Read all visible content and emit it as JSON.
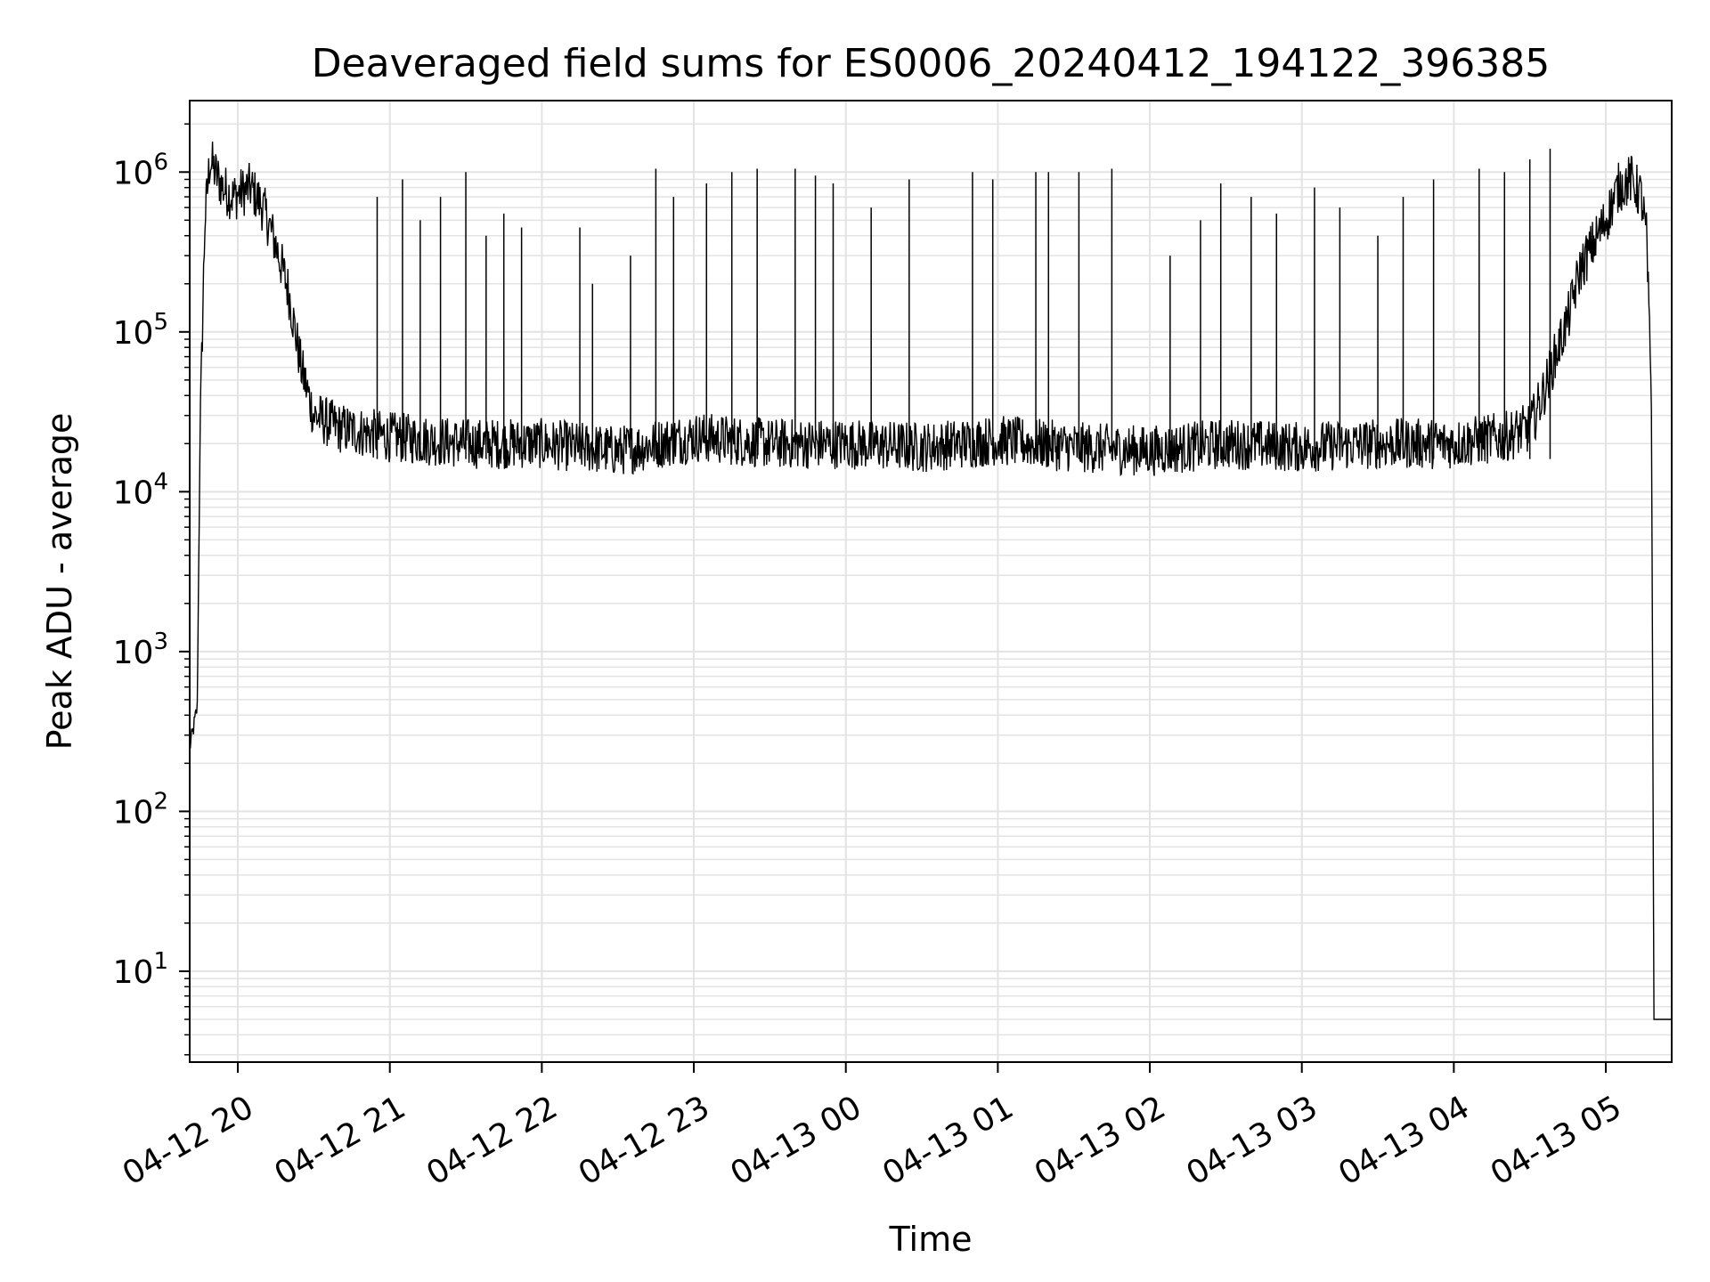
{
  "chart_data": {
    "type": "line",
    "title": "Deaveraged field sums for ES0006_20240412_194122_396385",
    "xlabel": "Time",
    "ylabel": "Peak ADU - average",
    "yscale": "log",
    "ylim": [
      2.7,
      2800000
    ],
    "xlim": [
      "2024-04-12 19:41",
      "2024-04-13 05:26"
    ],
    "grid": true,
    "x_ticks": [
      "04-12 20",
      "04-12 21",
      "04-12 22",
      "04-12 23",
      "04-13 00",
      "04-13 01",
      "04-13 02",
      "04-13 03",
      "04-13 04",
      "04-13 05"
    ],
    "y_ticks": [
      {
        "base": "10",
        "exp": "1",
        "value": 10
      },
      {
        "base": "10",
        "exp": "2",
        "value": 100
      },
      {
        "base": "10",
        "exp": "3",
        "value": 1000
      },
      {
        "base": "10",
        "exp": "4",
        "value": 10000
      },
      {
        "base": "10",
        "exp": "5",
        "value": 100000
      },
      {
        "base": "10",
        "exp": "6",
        "value": 1000000
      }
    ],
    "series": [
      {
        "color": "#000000",
        "x": [
          "2024-04-12 19:41",
          "2024-04-12 19:42",
          "2024-04-12 19:44",
          "2024-04-12 19:45",
          "2024-04-12 19:47",
          "2024-04-12 19:49",
          "2024-04-12 19:51",
          "2024-04-12 19:54",
          "2024-04-12 19:58",
          "2024-04-12 20:05",
          "2024-04-12 20:10",
          "2024-04-12 20:15",
          "2024-04-12 20:20",
          "2024-04-12 20:25",
          "2024-04-12 20:30",
          "2024-04-12 20:40",
          "2024-04-12 21:00",
          "2024-04-12 21:30",
          "2024-04-12 22:00",
          "2024-04-12 22:30",
          "2024-04-12 23:00",
          "2024-04-12 23:30",
          "2024-04-13 00:00",
          "2024-04-13 00:30",
          "2024-04-13 01:00",
          "2024-04-13 01:30",
          "2024-04-13 02:00",
          "2024-04-13 02:30",
          "2024-04-13 03:00",
          "2024-04-13 03:30",
          "2024-04-13 04:00",
          "2024-04-13 04:20",
          "2024-04-13 04:30",
          "2024-04-13 04:35",
          "2024-04-13 04:40",
          "2024-04-13 04:45",
          "2024-04-13 04:50",
          "2024-04-13 05:00",
          "2024-04-13 05:05",
          "2024-04-13 05:10",
          "2024-04-13 05:14",
          "2024-04-13 05:16",
          "2024-04-13 05:18",
          "2024-04-13 05:19",
          "2024-04-13 05:26"
        ],
        "y": [
          250,
          300,
          450,
          20000,
          500000,
          1200000,
          1000000,
          800000,
          700000,
          800000,
          600000,
          350000,
          180000,
          60000,
          30000,
          25000,
          22000,
          20000,
          20000,
          18000,
          22000,
          20000,
          20000,
          19000,
          21000,
          19000,
          18000,
          20000,
          19000,
          20000,
          20000,
          22000,
          25000,
          40000,
          70000,
          120000,
          250000,
          500000,
          800000,
          900000,
          700000,
          400000,
          40000,
          5,
          5
        ]
      }
    ],
    "spikes": [
      {
        "x": "2024-04-12 20:55",
        "y": 700000
      },
      {
        "x": "2024-04-12 21:05",
        "y": 900000
      },
      {
        "x": "2024-04-12 21:12",
        "y": 500000
      },
      {
        "x": "2024-04-12 21:20",
        "y": 700000
      },
      {
        "x": "2024-04-12 21:30",
        "y": 1000000
      },
      {
        "x": "2024-04-12 21:38",
        "y": 400000
      },
      {
        "x": "2024-04-12 21:45",
        "y": 550000
      },
      {
        "x": "2024-04-12 21:52",
        "y": 450000
      },
      {
        "x": "2024-04-12 22:15",
        "y": 450000
      },
      {
        "x": "2024-04-12 22:20",
        "y": 200000
      },
      {
        "x": "2024-04-12 22:35",
        "y": 300000
      },
      {
        "x": "2024-04-12 22:45",
        "y": 1050000
      },
      {
        "x": "2024-04-12 22:52",
        "y": 700000
      },
      {
        "x": "2024-04-12 23:05",
        "y": 850000
      },
      {
        "x": "2024-04-12 23:15",
        "y": 1000000
      },
      {
        "x": "2024-04-12 23:25",
        "y": 1050000
      },
      {
        "x": "2024-04-12 23:40",
        "y": 1050000
      },
      {
        "x": "2024-04-12 23:48",
        "y": 950000
      },
      {
        "x": "2024-04-12 23:55",
        "y": 850000
      },
      {
        "x": "2024-04-13 00:10",
        "y": 600000
      },
      {
        "x": "2024-04-13 00:25",
        "y": 900000
      },
      {
        "x": "2024-04-13 00:50",
        "y": 1000000
      },
      {
        "x": "2024-04-13 00:58",
        "y": 900000
      },
      {
        "x": "2024-04-13 01:15",
        "y": 1000000
      },
      {
        "x": "2024-04-13 01:20",
        "y": 1000000
      },
      {
        "x": "2024-04-13 01:32",
        "y": 1000000
      },
      {
        "x": "2024-04-13 01:45",
        "y": 1050000
      },
      {
        "x": "2024-04-13 02:08",
        "y": 300000
      },
      {
        "x": "2024-04-13 02:20",
        "y": 500000
      },
      {
        "x": "2024-04-13 02:28",
        "y": 850000
      },
      {
        "x": "2024-04-13 02:40",
        "y": 700000
      },
      {
        "x": "2024-04-13 02:50",
        "y": 550000
      },
      {
        "x": "2024-04-13 03:05",
        "y": 800000
      },
      {
        "x": "2024-04-13 03:15",
        "y": 600000
      },
      {
        "x": "2024-04-13 03:30",
        "y": 400000
      },
      {
        "x": "2024-04-13 03:40",
        "y": 700000
      },
      {
        "x": "2024-04-13 03:52",
        "y": 900000
      },
      {
        "x": "2024-04-13 04:10",
        "y": 1050000
      },
      {
        "x": "2024-04-13 04:20",
        "y": 1000000
      },
      {
        "x": "2024-04-13 04:30",
        "y": 1200000
      },
      {
        "x": "2024-04-13 04:38",
        "y": 1400000
      }
    ]
  }
}
